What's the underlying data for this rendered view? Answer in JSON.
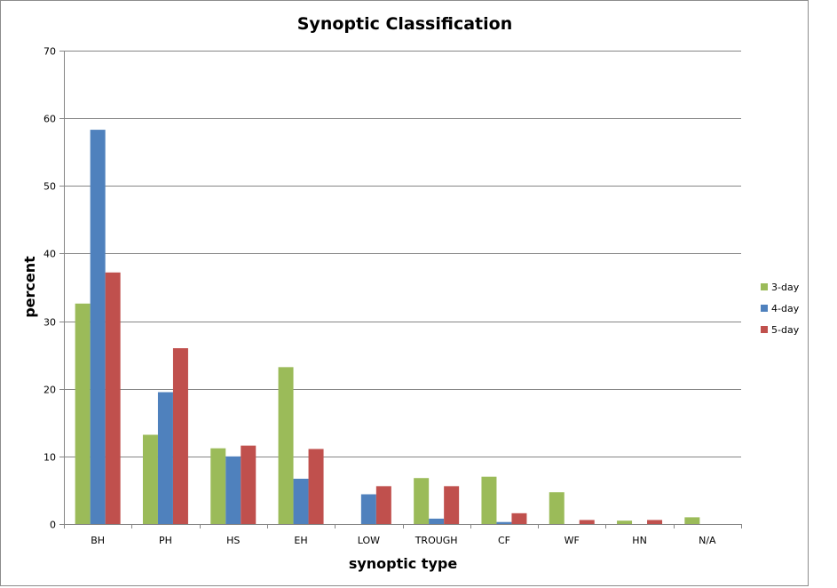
{
  "chart_data": {
    "type": "bar",
    "title": "Synoptic Classification",
    "xlabel": "synoptic type",
    "ylabel": "percent",
    "categories": [
      "BH",
      "PH",
      "HS",
      "EH",
      "LOW",
      "TROUGH",
      "CF",
      "WF",
      "HN",
      "N/A"
    ],
    "series": [
      {
        "name": "3-day",
        "color": "#9bbb59",
        "values": [
          32.6,
          13.2,
          11.2,
          23.2,
          0,
          6.8,
          7.0,
          4.7,
          0.5,
          1.0
        ]
      },
      {
        "name": "4-day",
        "color": "#4f81bd",
        "values": [
          58.3,
          19.5,
          10.0,
          6.7,
          4.4,
          0.8,
          0.3,
          0,
          0,
          0
        ]
      },
      {
        "name": "5-day",
        "color": "#c0504d",
        "values": [
          37.2,
          26.0,
          11.6,
          11.1,
          5.6,
          5.6,
          1.6,
          0.6,
          0.6,
          0
        ]
      }
    ],
    "ylim": [
      0,
      70
    ],
    "yticks": [
      0,
      10,
      20,
      30,
      40,
      50,
      60,
      70
    ],
    "grid": true,
    "legend_position": "right"
  }
}
